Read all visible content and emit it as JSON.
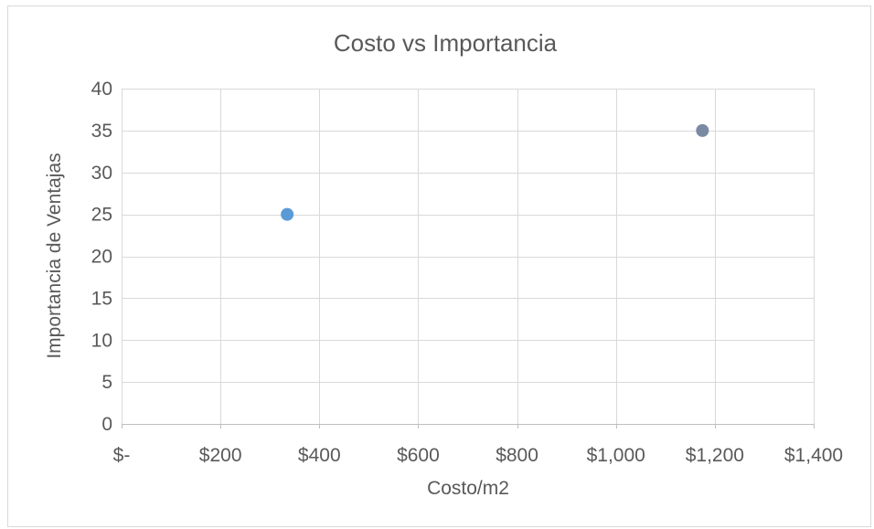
{
  "chart_data": {
    "type": "scatter",
    "title": "Costo vs Importancia",
    "xlabel": "Costo/m2",
    "ylabel": "Importancia de Ventajas",
    "xlim": [
      0,
      1400
    ],
    "ylim": [
      0,
      40
    ],
    "x_ticks": [
      0,
      200,
      400,
      600,
      800,
      1000,
      1200,
      1400
    ],
    "x_tick_labels": [
      "$-",
      "$200",
      "$400",
      "$600",
      "$800",
      "$1,000",
      "$1,200",
      "$1,400"
    ],
    "y_ticks": [
      0,
      5,
      10,
      15,
      20,
      25,
      30,
      35,
      40
    ],
    "y_tick_labels": [
      "0",
      "5",
      "10",
      "15",
      "20",
      "25",
      "30",
      "35",
      "40"
    ],
    "grid": true,
    "series": [
      {
        "x": [
          335
        ],
        "y": [
          25
        ],
        "color": "#5b9bd5"
      },
      {
        "x": [
          1175
        ],
        "y": [
          35
        ],
        "color": "#7b8aa3"
      }
    ]
  }
}
